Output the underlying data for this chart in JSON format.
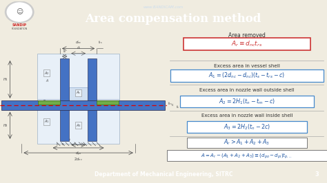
{
  "title": "Area compensation method",
  "watermark": "www.BANDICAM.com",
  "bg_color": "#f0ece0",
  "header_bg": "#4472c4",
  "header_text_color": "#ffffff",
  "footer_bg": "#4472c4",
  "footer_text": "Department of Mechanical Engineering, SITRC",
  "footer_page": "3",
  "shell_color": "#4472c4",
  "pad_color": "#70ad47",
  "area_fill": "#d0e4f5",
  "dashed_color": "#dd0000",
  "label_color": "#444444",
  "eq_red": "#cc3333",
  "eq_blue": "#1a52a0",
  "eq_border_red": "#cc3333",
  "eq_border_blue": "#4488cc",
  "eq_border_gray": "#888888"
}
